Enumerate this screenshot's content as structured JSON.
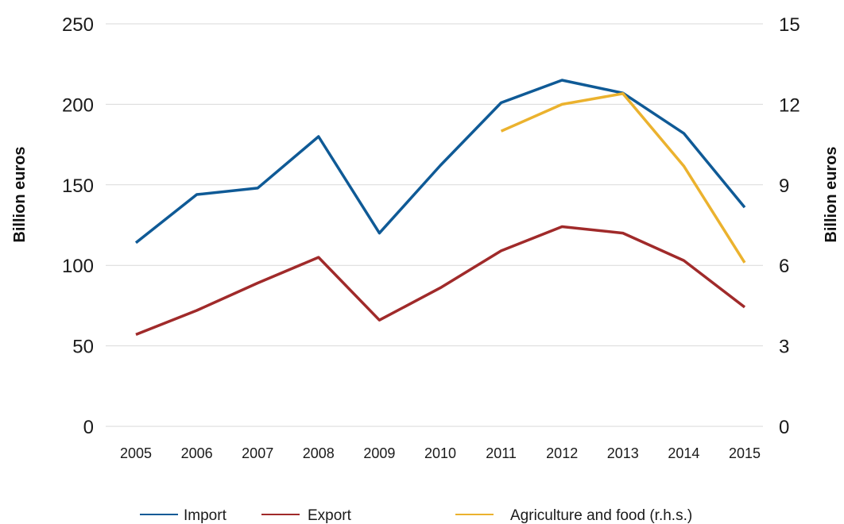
{
  "chart_data": {
    "type": "line",
    "x": [
      "2005",
      "2006",
      "2007",
      "2008",
      "2009",
      "2010",
      "2011",
      "2012",
      "2013",
      "2014",
      "2015"
    ],
    "series": [
      {
        "name": "Import",
        "axis": "left",
        "color": "#0F5A96",
        "values": [
          114,
          144,
          148,
          180,
          120,
          162,
          201,
          215,
          207,
          182,
          136
        ]
      },
      {
        "name": "Export",
        "axis": "left",
        "color": "#A02A2A",
        "values": [
          57,
          72,
          89,
          105,
          66,
          86,
          109,
          124,
          120,
          103,
          74
        ]
      },
      {
        "name": "Agriculture and food (r.h.s.)",
        "axis": "right",
        "color": "#EBB22E",
        "values": [
          null,
          null,
          null,
          null,
          null,
          null,
          11.0,
          12.0,
          12.4,
          9.7,
          6.1
        ]
      }
    ],
    "y_left": {
      "label": "Billion euros",
      "ticks": [
        "0",
        "50",
        "100",
        "150",
        "200",
        "250"
      ],
      "range": [
        0,
        250
      ]
    },
    "y_right": {
      "label": "Billion euros",
      "ticks": [
        "0",
        "3",
        "6",
        "9",
        "12",
        "15"
      ],
      "range": [
        0,
        15
      ]
    },
    "grid": true,
    "legend_position": "bottom"
  }
}
